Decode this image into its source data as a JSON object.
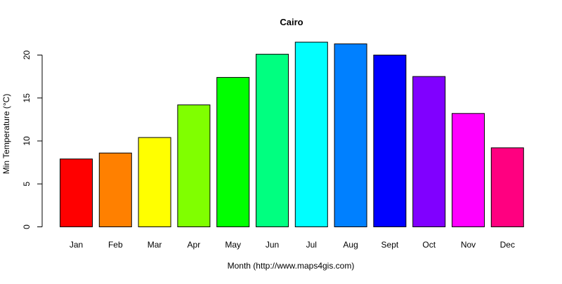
{
  "chart_data": {
    "type": "bar",
    "title": "Cairo",
    "xlabel": "Month (http://www.maps4gis.com)",
    "ylabel": "Min Temperature (°C)",
    "categories": [
      "Jan",
      "Feb",
      "Mar",
      "Apr",
      "May",
      "Jun",
      "Jul",
      "Aug",
      "Sept",
      "Oct",
      "Nov",
      "Dec"
    ],
    "values": [
      7.9,
      8.6,
      10.4,
      14.2,
      17.4,
      20.1,
      21.5,
      21.3,
      20.0,
      17.5,
      13.2,
      9.2
    ],
    "colors": [
      "#FF0000",
      "#FF8000",
      "#FFFF00",
      "#80FF00",
      "#00FF00",
      "#00FF80",
      "#00FFFF",
      "#0080FF",
      "#0000FF",
      "#8000FF",
      "#FF00FF",
      "#FF0080"
    ],
    "yticks": [
      0,
      5,
      10,
      15,
      20
    ],
    "ylim": [
      0,
      22
    ],
    "grid": false,
    "legend": "none"
  }
}
